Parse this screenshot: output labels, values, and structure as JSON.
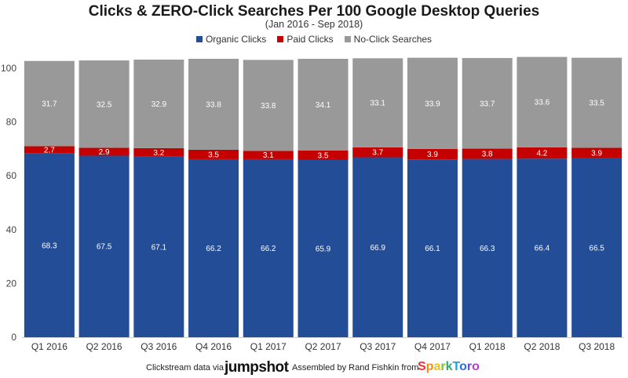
{
  "chart_data": {
    "type": "bar",
    "stacked": true,
    "title": "Clicks & ZERO-Click Searches Per 100 Google Desktop Queries",
    "subtitle": "(Jan 2016 - Sep 2018)",
    "xlabel": "",
    "ylabel": "",
    "ylim": [
      0,
      100
    ],
    "yticks": [
      0,
      20,
      40,
      60,
      80,
      100
    ],
    "grid": false,
    "legend_position": "top-center",
    "categories": [
      "Q1 2016",
      "Q2 2016",
      "Q3 2016",
      "Q4 2016",
      "Q1 2017",
      "Q2 2017",
      "Q3 2017",
      "Q4 2017",
      "Q1 2018",
      "Q2 2018",
      "Q3 2018"
    ],
    "series": [
      {
        "name": "Organic Clicks",
        "color": "#244d97",
        "values": [
          68.3,
          67.5,
          67.1,
          66.2,
          66.2,
          65.9,
          66.9,
          66.1,
          66.3,
          66.4,
          66.5
        ]
      },
      {
        "name": "Paid Clicks",
        "color": "#c40000",
        "values": [
          2.7,
          2.9,
          3.2,
          3.5,
          3.1,
          3.5,
          3.7,
          3.9,
          3.8,
          4.2,
          3.9
        ]
      },
      {
        "name": "No-Click Searches",
        "color": "#999999",
        "values": [
          31.7,
          32.5,
          32.9,
          33.8,
          33.8,
          34.1,
          33.1,
          33.9,
          33.7,
          33.6,
          33.5
        ]
      }
    ]
  },
  "footer": {
    "left_text": "Clickstream data via",
    "left_brand": "jumpshot",
    "right_text": "Assembled by Rand Fishkin from",
    "right_brand_letters": [
      "S",
      "p",
      "a",
      "r",
      "k",
      "T",
      "o",
      "r",
      "o"
    ]
  }
}
